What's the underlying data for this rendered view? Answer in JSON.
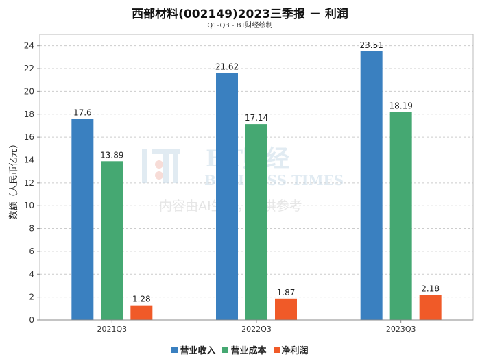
{
  "title": "西部材料(002149)2023三季报 － 利润",
  "subtitle": "Q1-Q3 - BT财经绘制",
  "watermark": {
    "brand": "BT财经",
    "english": "BUSINESS TIMES",
    "disclaimer": "内容由AI生成，仅供参考"
  },
  "chart_data": {
    "type": "bar",
    "categories": [
      "2021Q3",
      "2022Q3",
      "2023Q3"
    ],
    "series": [
      {
        "name": "营业收入",
        "color": "#3a80c0",
        "values": [
          17.6,
          21.62,
          23.51
        ]
      },
      {
        "name": "营业成本",
        "color": "#45a872",
        "values": [
          13.89,
          17.14,
          18.19
        ]
      },
      {
        "name": "净利润",
        "color": "#f05a28",
        "values": [
          1.28,
          1.87,
          2.18
        ]
      }
    ],
    "ylabel": "数额（人民币亿元）",
    "ylim": [
      0,
      25
    ],
    "yticks": [
      0,
      2,
      4,
      6,
      8,
      10,
      12,
      14,
      16,
      18,
      20,
      22,
      24
    ],
    "grid": true,
    "legend": "bottom"
  }
}
